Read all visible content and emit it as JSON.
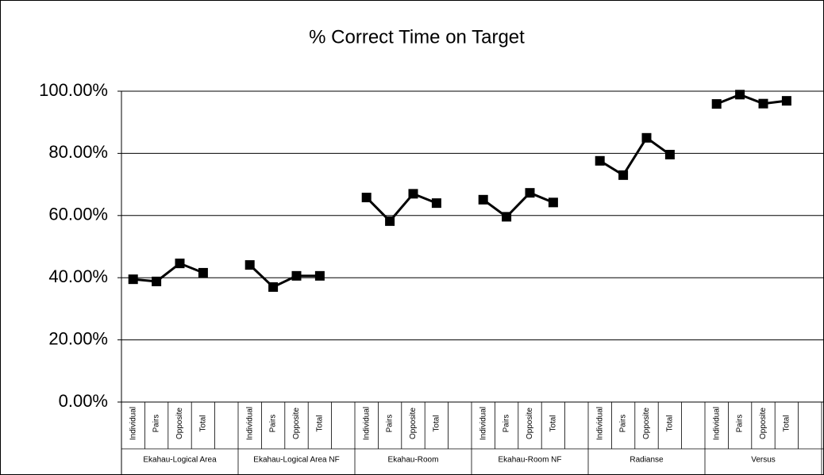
{
  "chart_data": {
    "type": "line",
    "title": "% Correct Time on Target",
    "categories": [
      "Individual",
      "Pairs",
      "Opposite",
      "Total",
      null,
      "Individual",
      "Pairs",
      "Opposite",
      "Total",
      null,
      "Individual",
      "Pairs",
      "Opposite",
      "Total",
      null,
      "Individual",
      "Pairs",
      "Opposite",
      "Total",
      null,
      "Individual",
      "Pairs",
      "Opposite",
      "Total",
      null,
      "Individual",
      "Pairs",
      "Opposite",
      "Total",
      null
    ],
    "groups": [
      "Ekahau-Logical Area",
      "Ekahau-Logical Area NF",
      "Ekahau-Room",
      "Ekahau-Room NF",
      "Radianse",
      "Versus"
    ],
    "values": [
      39.5,
      38.8,
      44.6,
      41.6,
      null,
      44.1,
      37.0,
      40.6,
      40.6,
      null,
      65.8,
      58.2,
      67.0,
      64.0,
      null,
      65.1,
      59.6,
      67.3,
      64.2,
      null,
      77.6,
      73.0,
      85.0,
      79.6,
      null,
      95.9,
      98.9,
      96.0,
      96.9,
      null
    ],
    "color": "#000000",
    "ylim": [
      0,
      100
    ],
    "yticks": [
      {
        "value": 0,
        "label": "0.00%"
      },
      {
        "value": 20,
        "label": "20.00%"
      },
      {
        "value": 40,
        "label": "40.00%"
      },
      {
        "value": 60,
        "label": "60.00%"
      },
      {
        "value": 80,
        "label": "80.00%"
      },
      {
        "value": 100,
        "label": "100.00%"
      }
    ],
    "grid": true
  }
}
